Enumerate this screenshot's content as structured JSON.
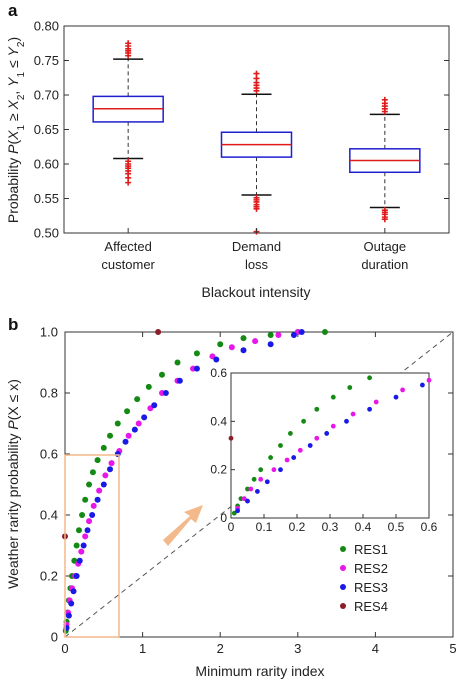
{
  "panels": {
    "a": "a",
    "b": "b"
  },
  "chart_data": [
    {
      "type": "boxplot",
      "panel": "a",
      "ylabel": "Probability P(X₁ ≥ X₂, Y₁ ≤ Y₂)",
      "ylabel_parts": [
        "Probability ",
        "P",
        "(",
        "X",
        "1",
        " ≥ ",
        "X",
        "2",
        ", ",
        "Y",
        "1",
        " ≤ ",
        "Y",
        "2",
        ")"
      ],
      "xlabel": "Blackout intensity",
      "ylim": [
        0.5,
        0.8
      ],
      "yticks": [
        "0.50",
        "0.55",
        "0.60",
        "0.65",
        "0.70",
        "0.75",
        "0.80"
      ],
      "categories": [
        {
          "label_lines": [
            "Affected",
            "customer"
          ]
        },
        {
          "label_lines": [
            "Demand",
            "loss"
          ]
        },
        {
          "label_lines": [
            "Outage",
            "duration"
          ]
        }
      ],
      "boxes": [
        {
          "whisker_low": 0.608,
          "q1": 0.661,
          "median": 0.68,
          "q3": 0.698,
          "whisker_high": 0.752,
          "outliers_low": [
            0.604,
            0.6,
            0.597,
            0.594,
            0.59,
            0.586,
            0.58,
            0.573
          ],
          "outliers_high": [
            0.757,
            0.761,
            0.764,
            0.767,
            0.771,
            0.775
          ]
        },
        {
          "whisker_low": 0.555,
          "q1": 0.61,
          "median": 0.628,
          "q3": 0.646,
          "whisker_high": 0.701,
          "outliers_low": [
            0.551,
            0.548,
            0.545,
            0.541,
            0.538,
            0.535,
            0.502
          ],
          "outliers_high": [
            0.706,
            0.71,
            0.714,
            0.718,
            0.724,
            0.731
          ]
        },
        {
          "whisker_low": 0.537,
          "q1": 0.588,
          "median": 0.605,
          "q3": 0.622,
          "whisker_high": 0.672,
          "outliers_low": [
            0.533,
            0.53,
            0.527,
            0.523,
            0.52
          ],
          "outliers_high": [
            0.676,
            0.68,
            0.684,
            0.688,
            0.693
          ]
        }
      ],
      "colors": {
        "box": "#1f1fd0",
        "median": "#e01b1b",
        "whisker": "#333333",
        "outlier": "#e01b1b"
      }
    },
    {
      "type": "scatter",
      "panel": "b",
      "xlabel": "Minimum rarity index",
      "ylabel": "Weather rarity probability P(X ≤ x)",
      "ylabel_parts": [
        "Weather rarity probability ",
        "P",
        "(X ≤ x)"
      ],
      "xlim": [
        0,
        5
      ],
      "ylim": [
        0,
        1
      ],
      "xticks": [
        "0",
        "1",
        "2",
        "3",
        "4",
        "5"
      ],
      "yticks": [
        "0",
        "0.2",
        "0.4",
        "0.6",
        "0.8",
        "1.0"
      ],
      "diagonal": true,
      "legend_position": "bottom-right",
      "series": [
        {
          "name": "RES1",
          "color": "#148a14",
          "points": [
            [
              0.01,
              0.02
            ],
            [
              0.02,
              0.05
            ],
            [
              0.03,
              0.08
            ],
            [
              0.05,
              0.12
            ],
            [
              0.07,
              0.16
            ],
            [
              0.09,
              0.2
            ],
            [
              0.12,
              0.25
            ],
            [
              0.15,
              0.3
            ],
            [
              0.18,
              0.35
            ],
            [
              0.22,
              0.4
            ],
            [
              0.26,
              0.45
            ],
            [
              0.31,
              0.5
            ],
            [
              0.36,
              0.54
            ],
            [
              0.42,
              0.58
            ],
            [
              0.5,
              0.62
            ],
            [
              0.58,
              0.66
            ],
            [
              0.68,
              0.7
            ],
            [
              0.8,
              0.74
            ],
            [
              0.93,
              0.78
            ],
            [
              1.08,
              0.82
            ],
            [
              1.25,
              0.86
            ],
            [
              1.45,
              0.9
            ],
            [
              1.7,
              0.93
            ],
            [
              2.0,
              0.96
            ],
            [
              2.3,
              0.98
            ],
            [
              2.65,
              0.99
            ],
            [
              3.0,
              1.0
            ],
            [
              3.35,
              1.0
            ]
          ]
        },
        {
          "name": "RES2",
          "color": "#e817e8",
          "points": [
            [
              0.02,
              0.04
            ],
            [
              0.04,
              0.08
            ],
            [
              0.06,
              0.12
            ],
            [
              0.09,
              0.16
            ],
            [
              0.13,
              0.2
            ],
            [
              0.17,
              0.24
            ],
            [
              0.21,
              0.28
            ],
            [
              0.26,
              0.33
            ],
            [
              0.31,
              0.38
            ],
            [
              0.37,
              0.43
            ],
            [
              0.44,
              0.48
            ],
            [
              0.52,
              0.53
            ],
            [
              0.6,
              0.57
            ],
            [
              0.7,
              0.61
            ],
            [
              0.82,
              0.66
            ],
            [
              0.95,
              0.7
            ],
            [
              1.1,
              0.75
            ],
            [
              1.25,
              0.8
            ],
            [
              1.45,
              0.84
            ],
            [
              1.65,
              0.88
            ],
            [
              1.9,
              0.92
            ],
            [
              2.15,
              0.95
            ],
            [
              2.45,
              0.97
            ],
            [
              2.75,
              0.99
            ],
            [
              3.0,
              1.0
            ]
          ]
        },
        {
          "name": "RES3",
          "color": "#1a1ae6",
          "points": [
            [
              0.02,
              0.03
            ],
            [
              0.05,
              0.07
            ],
            [
              0.08,
              0.11
            ],
            [
              0.11,
              0.15
            ],
            [
              0.15,
              0.2
            ],
            [
              0.19,
              0.25
            ],
            [
              0.24,
              0.3
            ],
            [
              0.29,
              0.35
            ],
            [
              0.35,
              0.4
            ],
            [
              0.42,
              0.45
            ],
            [
              0.5,
              0.5
            ],
            [
              0.58,
              0.55
            ],
            [
              0.68,
              0.6
            ],
            [
              0.78,
              0.64
            ],
            [
              0.9,
              0.68
            ],
            [
              1.02,
              0.72
            ],
            [
              1.15,
              0.76
            ],
            [
              1.3,
              0.8
            ],
            [
              1.48,
              0.84
            ],
            [
              1.7,
              0.88
            ],
            [
              1.95,
              0.91
            ],
            [
              2.3,
              0.94
            ],
            [
              2.65,
              0.96
            ],
            [
              2.95,
              0.99
            ],
            [
              3.05,
              1.0
            ]
          ]
        },
        {
          "name": "RES4",
          "color": "#8b1c2a",
          "points": [
            [
              0.0,
              0.33
            ],
            [
              1.2,
              1.0
            ]
          ]
        }
      ],
      "inset": {
        "xlim": [
          0,
          0.6
        ],
        "ylim": [
          0,
          0.6
        ],
        "xticks": [
          "0",
          "0.1",
          "0.2",
          "0.3",
          "0.4",
          "0.5",
          "0.6"
        ],
        "yticks": [
          "0",
          "0.2",
          "0.4",
          "0.6"
        ]
      }
    }
  ]
}
